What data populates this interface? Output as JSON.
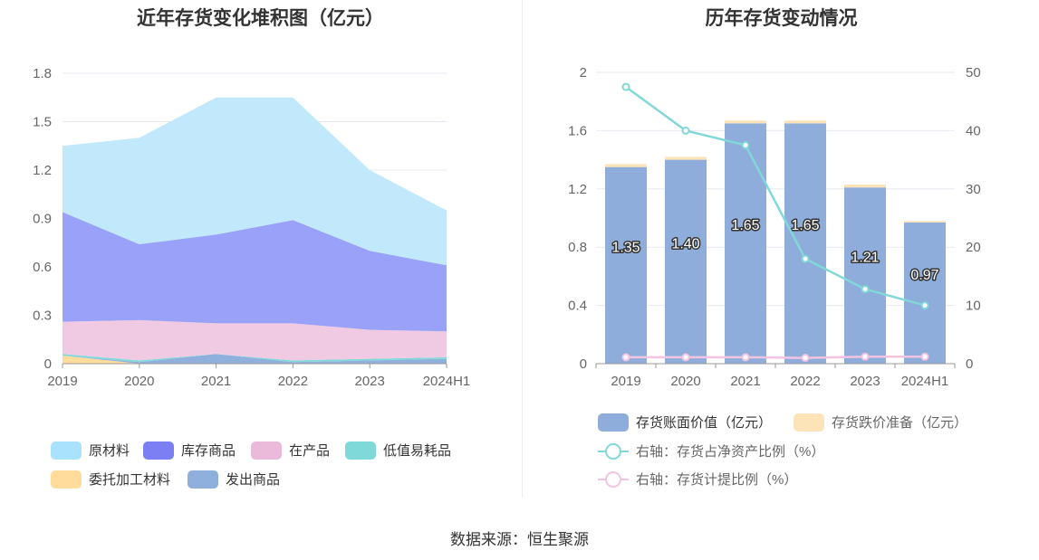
{
  "source_label": "数据来源：恒生聚源",
  "chart_data": [
    {
      "type": "area",
      "title": "近年存货变化堆积图（亿元）",
      "x": [
        "2019",
        "2020",
        "2021",
        "2022",
        "2023",
        "2024H1"
      ],
      "y_ticks": [
        "0",
        "0.3",
        "0.6",
        "0.9",
        "1.2",
        "1.5",
        "1.8"
      ],
      "ylim": [
        0,
        1.8
      ],
      "stacked": true,
      "grid": true,
      "legend_position": "bottom",
      "series": [
        {
          "name": "委托加工材料",
          "color": "#ffdc9c",
          "values": [
            0.05,
            0.0,
            0.0,
            0.0,
            0.0,
            0.0
          ]
        },
        {
          "name": "发出商品",
          "color": "#8fb0dd",
          "values": [
            0.0,
            0.01,
            0.06,
            0.01,
            0.02,
            0.03
          ]
        },
        {
          "name": "低值易耗品",
          "color": "#7fd9d8",
          "values": [
            0.01,
            0.01,
            0.0,
            0.01,
            0.01,
            0.01
          ]
        },
        {
          "name": "在产品",
          "color": "#f0c9e3",
          "values": [
            0.2,
            0.25,
            0.19,
            0.23,
            0.18,
            0.16
          ]
        },
        {
          "name": "库存商品",
          "color": "#9aa1f8",
          "values": [
            0.68,
            0.47,
            0.55,
            0.64,
            0.49,
            0.41
          ]
        },
        {
          "name": "原材料",
          "color": "#c1e9fb",
          "values": [
            0.41,
            0.66,
            0.85,
            0.76,
            0.5,
            0.34
          ]
        }
      ],
      "legend": [
        {
          "name": "原材料",
          "color": "#a9e2fc"
        },
        {
          "name": "库存商品",
          "color": "#7c7ef3"
        },
        {
          "name": "在产品",
          "color": "#ebb9da"
        },
        {
          "name": "低值易耗品",
          "color": "#7fd9d8"
        },
        {
          "name": "委托加工材料",
          "color": "#ffdc9c"
        },
        {
          "name": "发出商品",
          "color": "#8fb0dd"
        }
      ]
    },
    {
      "type": "bar",
      "title": "历年存货变动情况",
      "x": [
        "2019",
        "2020",
        "2021",
        "2022",
        "2023",
        "2024H1"
      ],
      "y_left_ticks": [
        "0",
        "0.4",
        "0.8",
        "1.2",
        "1.6",
        "2"
      ],
      "y_right_ticks": [
        "0",
        "10",
        "20",
        "30",
        "40",
        "50"
      ],
      "ylim_left": [
        0,
        2
      ],
      "ylim_right": [
        0,
        50
      ],
      "grid": true,
      "legend_position": "bottom",
      "series": [
        {
          "name": "存货账面价值（亿元）",
          "type": "bar",
          "axis": "left",
          "color": "#8eadda",
          "values": [
            1.35,
            1.4,
            1.65,
            1.65,
            1.21,
            0.97
          ],
          "labels": [
            "1.35",
            "1.40",
            "1.65",
            "1.65",
            "1.21",
            "0.97"
          ]
        },
        {
          "name": "存货跌价准备（亿元）",
          "type": "bar",
          "axis": "left",
          "color": "#fde4b8",
          "values": [
            0.02,
            0.02,
            0.02,
            0.02,
            0.02,
            0.01
          ]
        },
        {
          "name": "右轴：存货占净资产比例（%）",
          "type": "line",
          "axis": "right",
          "color": "#82d8d8",
          "values": [
            47.5,
            40.0,
            37.5,
            18.0,
            12.8,
            10.0
          ]
        },
        {
          "name": "右轴：存货计提比例（%）",
          "type": "line",
          "axis": "right",
          "color": "#f3c4e2",
          "values": [
            1.1,
            1.1,
            1.1,
            1.0,
            1.2,
            1.2
          ]
        }
      ]
    }
  ]
}
